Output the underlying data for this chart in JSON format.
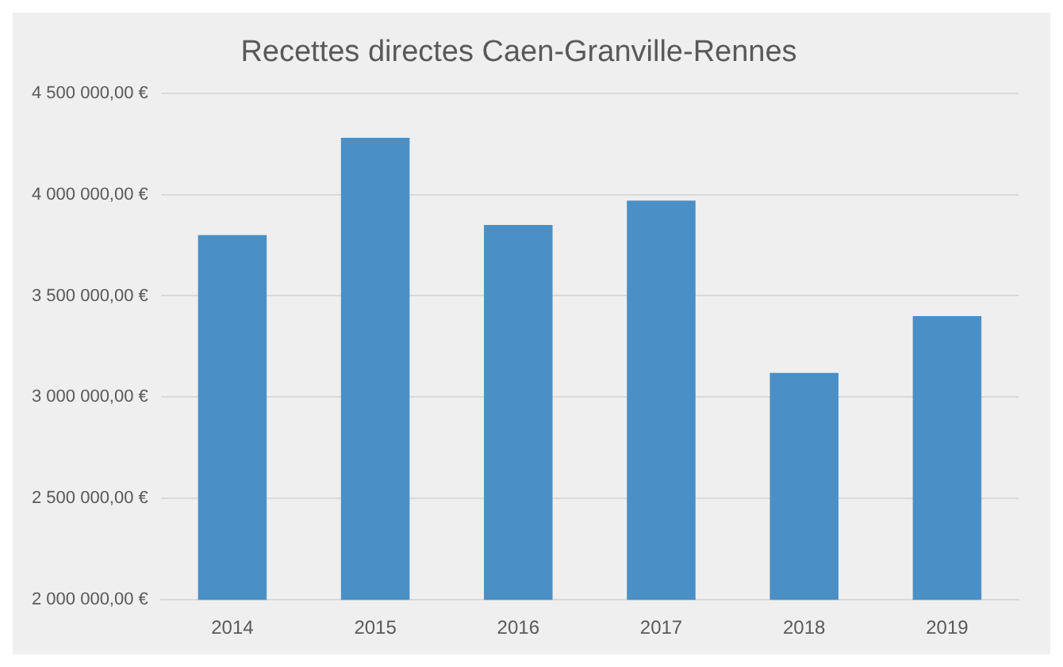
{
  "chart_data": {
    "type": "bar",
    "title": "Recettes directes Caen-Granville-Rennes",
    "categories": [
      "2014",
      "2015",
      "2016",
      "2017",
      "2018",
      "2019"
    ],
    "values": [
      3800000,
      4280000,
      3850000,
      3970000,
      3120000,
      3400000
    ],
    "color": "#4a90c6",
    "ylim": [
      2000000,
      4500000
    ],
    "yticks": [
      {
        "value": 2000000,
        "label": "2 000 000,00 €"
      },
      {
        "value": 2500000,
        "label": "2 500 000,00 €"
      },
      {
        "value": 3000000,
        "label": "3 000 000,00 €"
      },
      {
        "value": 3500000,
        "label": "3 500 000,00 €"
      },
      {
        "value": 4000000,
        "label": "4 000 000,00 €"
      },
      {
        "value": 4500000,
        "label": "4 500 000,00 €"
      }
    ],
    "grid": "y",
    "legend": false
  }
}
